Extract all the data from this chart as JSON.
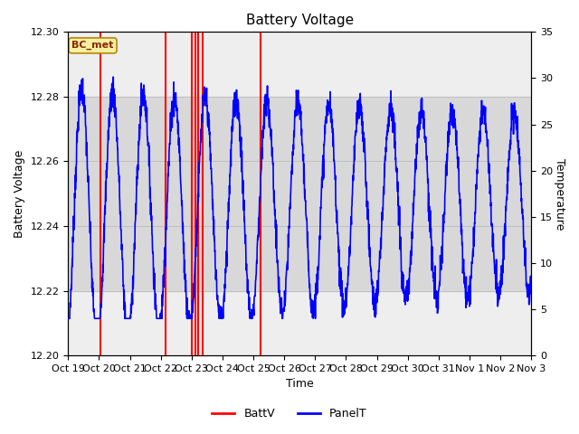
{
  "title": "Battery Voltage",
  "xlabel": "Time",
  "ylabel_left": "Battery Voltage",
  "ylabel_right": "Temperature",
  "ylim_left": [
    12.2,
    12.3
  ],
  "ylim_right": [
    0,
    35
  ],
  "yticks_left": [
    12.2,
    12.22,
    12.24,
    12.26,
    12.28,
    12.3
  ],
  "yticks_right": [
    0,
    5,
    10,
    15,
    20,
    25,
    30,
    35
  ],
  "xtick_labels": [
    "Oct 19",
    "Oct 20",
    "Oct 21",
    "Oct 22",
    "Oct 23",
    "Oct 24",
    "Oct 25",
    "Oct 26",
    "Oct 27",
    "Oct 28",
    "Oct 29",
    "Oct 30",
    "Oct 31",
    "Nov 1",
    "Nov 2",
    "Nov 3"
  ],
  "shaded_region": [
    12.22,
    12.28
  ],
  "annotation_text": "BC_met",
  "background_color": "#ffffff",
  "plot_bg_color": "#eeeeee",
  "shaded_color": "#d8d8d8",
  "battv_color": "#ff0000",
  "panelt_color": "#0000ff",
  "title_fontsize": 11,
  "axis_label_fontsize": 9,
  "tick_label_fontsize": 8,
  "battv_positions": [
    1.05,
    3.15,
    4.02,
    4.12,
    4.22,
    4.35,
    6.22
  ],
  "xlim": [
    0,
    15
  ]
}
